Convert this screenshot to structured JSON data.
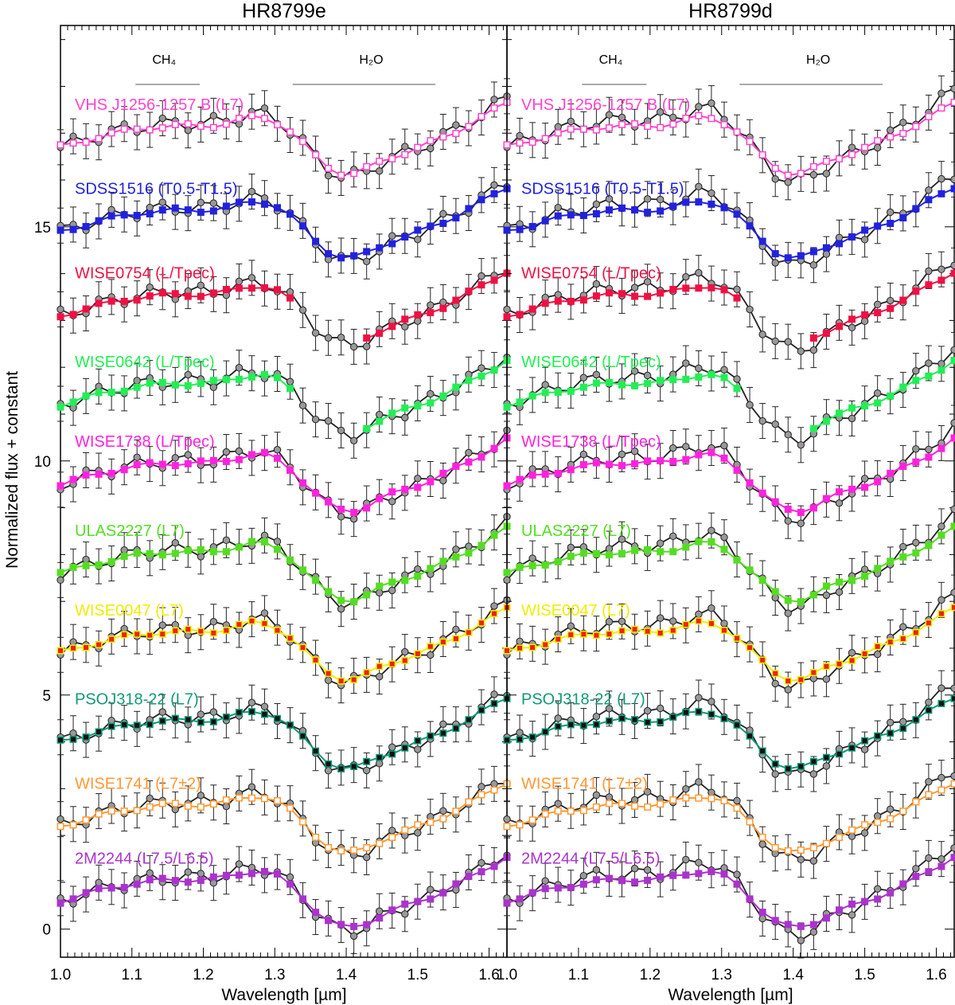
{
  "chart_data": {
    "type": "line",
    "ylabel": "Normalized flux + constant",
    "yticks": [
      0,
      5,
      10,
      15
    ],
    "ylim": [
      -0.6,
      19.3
    ],
    "xlim": [
      1.0,
      1.625
    ],
    "error_bars": true,
    "panels": [
      {
        "title": "HR8799e",
        "xlabel": "Wavelength [µm]",
        "xticks": [
          "1.0",
          "1.1",
          "1.2",
          "1.3",
          "1.4",
          "1.5",
          "1.6"
        ],
        "annotations": [
          {
            "label": "CH₄",
            "x": 1.145,
            "range": [
              1.105,
              1.195
            ]
          },
          {
            "label": "H₂O",
            "x": 1.435,
            "range": [
              1.325,
              1.525
            ]
          }
        ]
      },
      {
        "title": "HR8799d",
        "xlabel": "Wavelength [µm]",
        "xticks": [
          "1.0",
          "1.1",
          "1.2",
          "1.3",
          "1.4",
          "1.5",
          "1.6"
        ],
        "annotations": [
          {
            "label": "CH₄",
            "x": 1.145,
            "range": [
              1.105,
              1.195
            ]
          },
          {
            "label": "H₂O",
            "x": 1.435,
            "range": [
              1.325,
              1.525
            ]
          }
        ]
      }
    ],
    "series": [
      {
        "name": "VHS J1256-1257 B (L7)",
        "color": "#ff44cc",
        "marker": "open-square",
        "offset": 16.7,
        "e_gap": false,
        "d_gap": false
      },
      {
        "name": "SDSS1516 (T0.5-T1.5)",
        "color": "#2222dd",
        "marker": "filled-square",
        "offset": 14.9,
        "e_gap": false,
        "d_gap": false
      },
      {
        "name": "WISE0754 (L/Tpec)",
        "color": "#ee1144",
        "marker": "filled-square",
        "offset": 13.1,
        "e_gap": true,
        "d_gap": true
      },
      {
        "name": "WISE0642 (L/Tpec)",
        "color": "#22ee55",
        "marker": "filled-square",
        "offset": 11.2,
        "e_gap": true,
        "d_gap": true
      },
      {
        "name": "WISE1738 (L/Tpec)",
        "color": "#ff22dd",
        "marker": "filled-square",
        "offset": 9.5,
        "e_gap": false,
        "d_gap": false
      },
      {
        "name": "ULAS2227 (L7)",
        "color": "#55dd22",
        "marker": "filled-square",
        "offset": 7.6,
        "e_gap": false,
        "d_gap": false
      },
      {
        "name": "WISE0047 (L7)",
        "color": "#eeee00",
        "marker": "filled-square",
        "offset": 5.9,
        "e_gap": false,
        "d_gap": false
      },
      {
        "name": "PSOJ318-22 (L7)",
        "color": "#119977",
        "marker": "filled-square",
        "offset": 4.0,
        "e_gap": false,
        "d_gap": false
      },
      {
        "name": "WISE1741 (L7±2)",
        "color": "#ff9933",
        "marker": "open-square",
        "offset": 2.2,
        "e_gap": false,
        "d_gap": false
      },
      {
        "name": "2M2244 (L7.5/L6.5)",
        "color": "#aa33cc",
        "marker": "filled-square",
        "offset": 0.6,
        "e_gap": false,
        "d_gap": false
      }
    ]
  }
}
